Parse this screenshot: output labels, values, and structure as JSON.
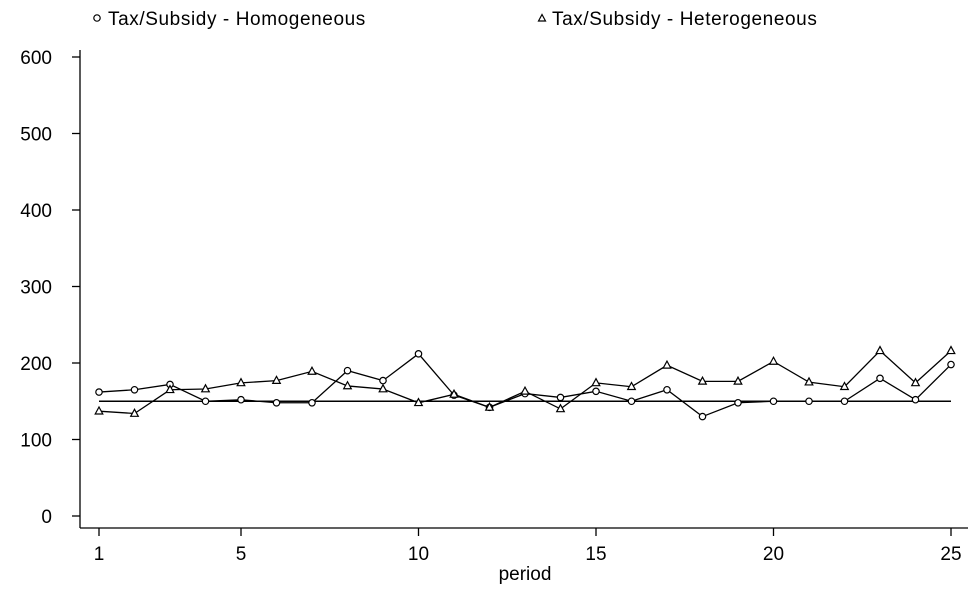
{
  "chart_data": {
    "type": "line",
    "title": "",
    "xlabel": "period",
    "ylabel": "",
    "xlim": [
      1,
      25
    ],
    "ylim": [
      0,
      600
    ],
    "xticks": [
      1,
      5,
      10,
      15,
      20,
      25
    ],
    "yticks": [
      0,
      100,
      200,
      300,
      400,
      500,
      600
    ],
    "grid": false,
    "legend_position": "top",
    "x": [
      1,
      2,
      3,
      4,
      5,
      6,
      7,
      8,
      9,
      10,
      11,
      12,
      13,
      14,
      15,
      16,
      17,
      18,
      19,
      20,
      21,
      22,
      23,
      24,
      25
    ],
    "series": [
      {
        "name": "Tax/Subsidy - Homogeneous",
        "marker": "circle",
        "values": [
          162,
          165,
          172,
          150,
          152,
          148,
          148,
          190,
          177,
          212,
          158,
          142,
          160,
          155,
          163,
          150,
          165,
          130,
          148,
          150,
          150,
          150,
          180,
          152,
          198
        ]
      },
      {
        "name": "Tax/Subsidy - Heterogeneous",
        "marker": "triangle",
        "values": [
          137,
          134,
          165,
          166,
          174,
          177,
          189,
          170,
          166,
          148,
          159,
          142,
          163,
          140,
          174,
          169,
          197,
          176,
          176,
          202,
          175,
          169,
          216,
          174,
          216
        ]
      }
    ],
    "reference_line": {
      "y": 150,
      "marker": "none"
    },
    "colors": {
      "line": "#000000",
      "background": "#ffffff"
    }
  }
}
